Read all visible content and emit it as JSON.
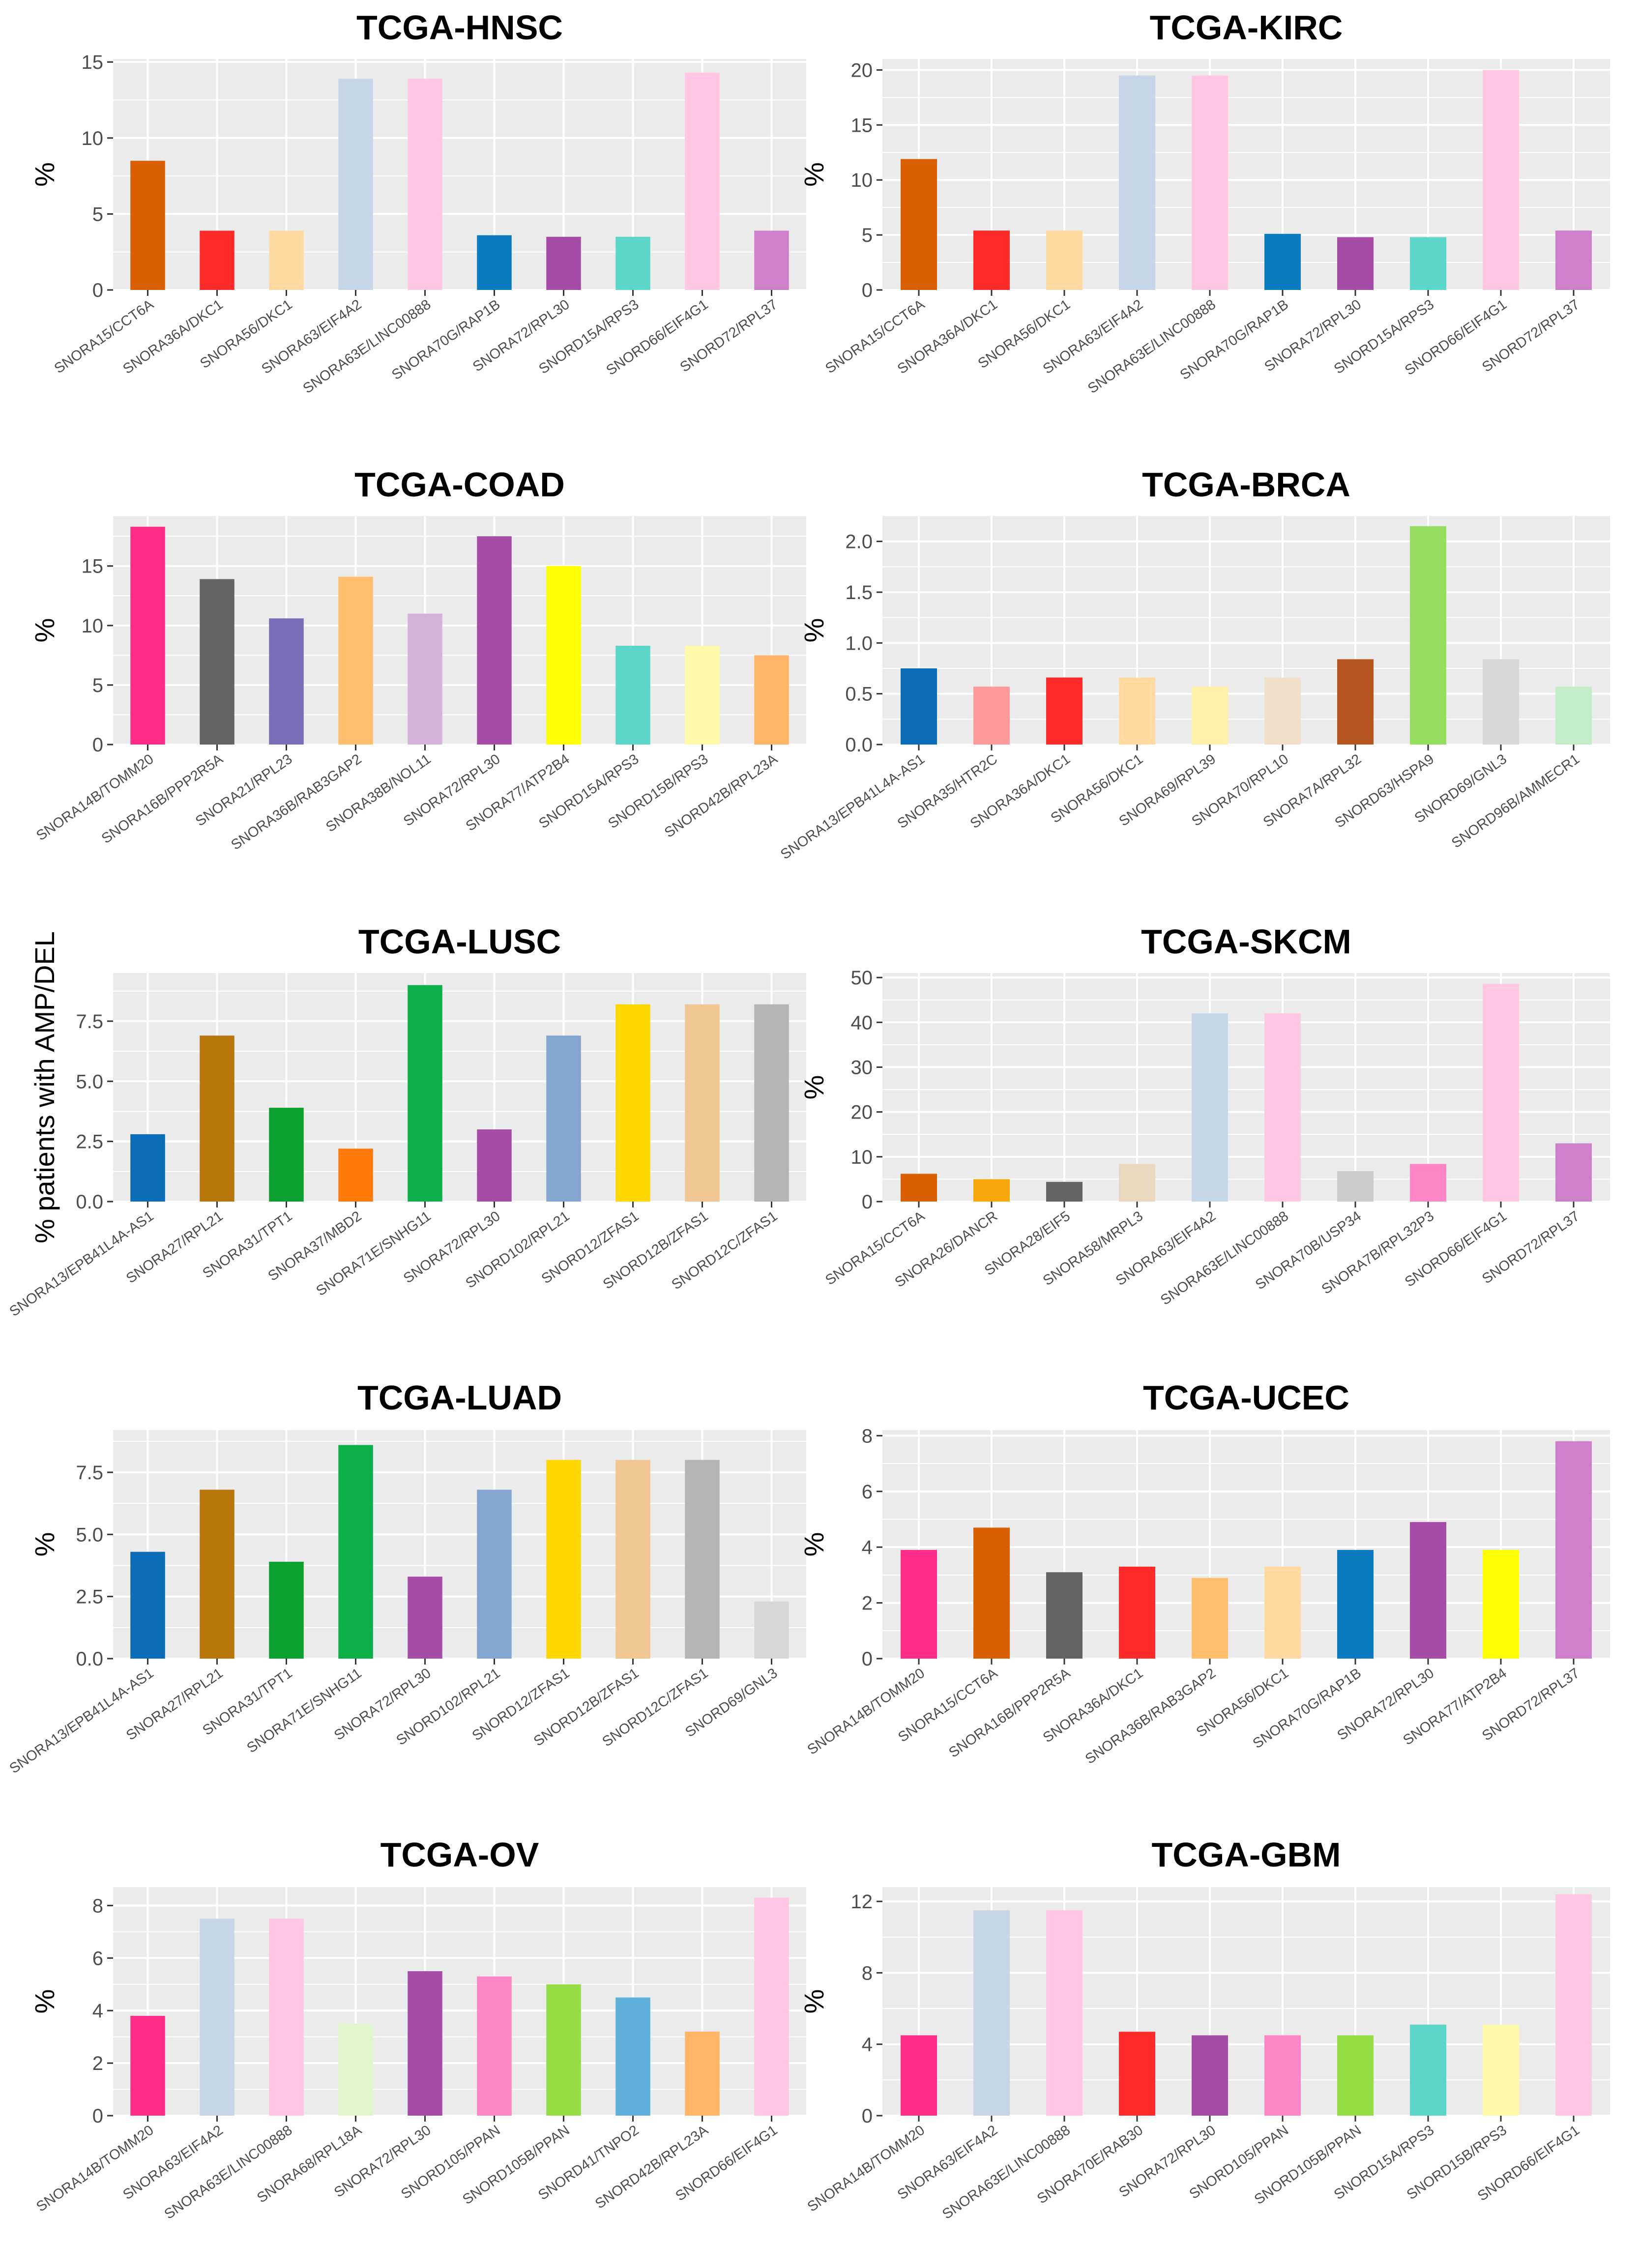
{
  "chart_data": [
    {
      "type": "bar",
      "title": "TCGA-HNSC",
      "ylabel": "%",
      "ylim": [
        0,
        15.2
      ],
      "yticks": [
        0,
        5,
        10,
        15
      ],
      "tick_labels": [
        "0",
        "5",
        "10",
        "15"
      ],
      "categories": [
        "SNORA15/CCT6A",
        "SNORA36A/DKC1",
        "SNORA56/DKC1",
        "SNORA63/EIF4A2",
        "SNORA63E/LINC00888",
        "SNORA70G/RAP1B",
        "SNORA72/RPL30",
        "SNORD15A/RPS3",
        "SNORD66/EIF4G1",
        "SNORD72/RPL37"
      ],
      "values": [
        8.5,
        3.9,
        3.9,
        13.9,
        13.9,
        3.6,
        3.5,
        3.5,
        14.3,
        3.9
      ],
      "colors": [
        "#D95F02",
        "#FF2A2A",
        "#FFD9A0",
        "#C6D6E8",
        "#FFC7E3",
        "#0B7BBF",
        "#A64CA6",
        "#5CD6C8",
        "#FFC7E3",
        "#CD7FC9"
      ]
    },
    {
      "type": "bar",
      "title": "TCGA-KIRC",
      "ylabel": "%",
      "ylim": [
        0,
        21
      ],
      "yticks": [
        0,
        5,
        10,
        15,
        20
      ],
      "tick_labels": [
        "0",
        "5",
        "10",
        "15",
        "20"
      ],
      "categories": [
        "SNORA15/CCT6A",
        "SNORA36A/DKC1",
        "SNORA56/DKC1",
        "SNORA63/EIF4A2",
        "SNORA63E/LINC00888",
        "SNORA70G/RAP1B",
        "SNORA72/RPL30",
        "SNORD15A/RPS3",
        "SNORD66/EIF4G1",
        "SNORD72/RPL37"
      ],
      "values": [
        11.9,
        5.4,
        5.4,
        19.5,
        19.5,
        5.1,
        4.8,
        4.8,
        20,
        5.4
      ],
      "colors": [
        "#D95F02",
        "#FF2A2A",
        "#FFD9A0",
        "#C6D6E8",
        "#FFC7E3",
        "#0B7BBF",
        "#A64CA6",
        "#5CD6C8",
        "#FFC7E3",
        "#CD7FC9"
      ]
    },
    {
      "type": "bar",
      "title": "TCGA-COAD",
      "ylabel": "%",
      "ylim": [
        0,
        19.2
      ],
      "yticks": [
        0,
        5,
        10,
        15
      ],
      "tick_labels": [
        "0",
        "5",
        "10",
        "15"
      ],
      "categories": [
        "SNORA14B/TOMM20",
        "SNORA16B/PPP2R5A",
        "SNORA21/RPL23",
        "SNORA36B/RAB3GAP2",
        "SNORA38B/NOL11",
        "SNORA72/RPL30",
        "SNORA77/ATP2B4",
        "SNORD15A/RPS3",
        "SNORD15B/RPS3",
        "SNORD42B/RPL23A"
      ],
      "values": [
        18.3,
        13.9,
        10.6,
        14.1,
        11,
        17.5,
        15,
        8.3,
        8.3,
        7.5
      ],
      "colors": [
        "#FF2D87",
        "#636466",
        "#7B6DB8",
        "#FFBE6E",
        "#D4B2DA",
        "#A64CA6",
        "#FFFF00",
        "#5CD6C8",
        "#FFFAAA",
        "#FFB466"
      ]
    },
    {
      "type": "bar",
      "title": "TCGA-BRCA",
      "ylabel": "%",
      "ylim": [
        0,
        2.25
      ],
      "yticks": [
        0,
        0.5,
        1,
        1.5,
        2
      ],
      "tick_labels": [
        "0.0",
        "0.5",
        "1.0",
        "1.5",
        "2.0"
      ],
      "categories": [
        "SNORA13/EPB41L4A-AS1",
        "SNORA35/HTR2C",
        "SNORA36A/DKC1",
        "SNORA56/DKC1",
        "SNORA69/RPL39",
        "SNORA70/RPL10",
        "SNORA7A/RPL32",
        "SNORD63/HSPA9",
        "SNORD69/GNL3",
        "SNORD96B/AMMECR1"
      ],
      "values": [
        0.75,
        0.57,
        0.66,
        0.66,
        0.57,
        0.66,
        0.84,
        2.15,
        0.84,
        0.57
      ],
      "colors": [
        "#0B6CB8",
        "#FF9A9A",
        "#FF2A2A",
        "#FFD9A0",
        "#FFF0A8",
        "#F2DFC9",
        "#B8561F",
        "#96DE60",
        "#D5D8D9",
        "#C3EDC8"
      ]
    },
    {
      "type": "bar",
      "title": "TCGA-LUSC",
      "ylabel": "% patients with AMP/DEL",
      "ylim": [
        0,
        9.5
      ],
      "yticks": [
        0,
        2.5,
        5,
        7.5
      ],
      "tick_labels": [
        "0.0",
        "2.5",
        "5.0",
        "7.5"
      ],
      "categories": [
        "SNORA13/EPB41L4A-AS1",
        "SNORA27/RPL21",
        "SNORA31/TPT1",
        "SNORA37/MBD2",
        "SNORA71E/SNHG11",
        "SNORA72/RPL30",
        "SNORD102/RPL21",
        "SNORD12/ZFAS1",
        "SNORD12B/ZFAS1",
        "SNORD12C/ZFAS1"
      ],
      "values": [
        2.8,
        6.9,
        3.9,
        2.2,
        9,
        3,
        6.9,
        8.2,
        8.2,
        8.2
      ],
      "colors": [
        "#0B6CB8",
        "#B8760A",
        "#0BA02F",
        "#FF7A0A",
        "#0BB048",
        "#A64CA6",
        "#85A5D1",
        "#FFD700",
        "#F0C692",
        "#B3B4B6"
      ]
    },
    {
      "type": "bar",
      "title": "TCGA-SKCM",
      "ylabel": "%",
      "ylim": [
        0,
        51
      ],
      "yticks": [
        0,
        10,
        20,
        30,
        40,
        50
      ],
      "tick_labels": [
        "0",
        "10",
        "20",
        "30",
        "40",
        "50"
      ],
      "categories": [
        "SNORA15/CCT6A",
        "SNORA26/DANCR",
        "SNORA28/EIF5",
        "SNORA58/MRPL3",
        "SNORA63/EIF4A2",
        "SNORA63E/LINC00888",
        "SNORA70B/USP34",
        "SNORA7B/RPL32P3",
        "SNORD66/EIF4G1",
        "SNORD72/RPL37"
      ],
      "values": [
        6.2,
        5,
        4.4,
        8.4,
        42,
        42,
        6.8,
        8.4,
        48.6,
        13
      ],
      "colors": [
        "#D95F02",
        "#F6A70A",
        "#636466",
        "#E9D8BE",
        "#C6D6E8",
        "#FFC7E3",
        "#CACBCD",
        "#FF86C6",
        "#FFC7E3",
        "#CD7FC9"
      ]
    },
    {
      "type": "bar",
      "title": "TCGA-LUAD",
      "ylabel": "%",
      "ylim": [
        0,
        9.2
      ],
      "yticks": [
        0,
        2.5,
        5,
        7.5
      ],
      "tick_labels": [
        "0.0",
        "2.5",
        "5.0",
        "7.5"
      ],
      "categories": [
        "SNORA13/EPB41L4A-AS1",
        "SNORA27/RPL21",
        "SNORA31/TPT1",
        "SNORA71E/SNHG11",
        "SNORA72/RPL30",
        "SNORD102/RPL21",
        "SNORD12/ZFAS1",
        "SNORD12B/ZFAS1",
        "SNORD12C/ZFAS1",
        "SNORD69/GNL3"
      ],
      "values": [
        4.3,
        6.8,
        3.9,
        8.6,
        3.3,
        6.8,
        8,
        8,
        8,
        2.3
      ],
      "colors": [
        "#0B6CB8",
        "#B8760A",
        "#0BA02F",
        "#0BB048",
        "#A64CA6",
        "#85A5D1",
        "#FFD700",
        "#F0C692",
        "#B3B4B6",
        "#D5D8D9"
      ]
    },
    {
      "type": "bar",
      "title": "TCGA-UCEC",
      "ylabel": "%",
      "ylim": [
        0,
        8.2
      ],
      "yticks": [
        0,
        2,
        4,
        6,
        8
      ],
      "tick_labels": [
        "0",
        "2",
        "4",
        "6",
        "8"
      ],
      "categories": [
        "SNORA14B/TOMM20",
        "SNORA15/CCT6A",
        "SNORA16B/PPP2R5A",
        "SNORA36A/DKC1",
        "SNORA36B/RAB3GAP2",
        "SNORA56/DKC1",
        "SNORA70G/RAP1B",
        "SNORA72/RPL30",
        "SNORA77/ATP2B4",
        "SNORD72/RPL37"
      ],
      "values": [
        3.9,
        4.7,
        3.1,
        3.3,
        2.9,
        3.3,
        3.9,
        4.9,
        3.9,
        7.8
      ],
      "colors": [
        "#FF2D87",
        "#D95F02",
        "#636466",
        "#FF2A2A",
        "#FFBE6E",
        "#FFD9A0",
        "#0B7BBF",
        "#A64CA6",
        "#FFFF00",
        "#CD7FC9"
      ]
    },
    {
      "type": "bar",
      "title": "TCGA-OV",
      "ylabel": "%",
      "ylim": [
        0,
        8.7
      ],
      "yticks": [
        0,
        2,
        4,
        6,
        8
      ],
      "tick_labels": [
        "0",
        "2",
        "4",
        "6",
        "8"
      ],
      "categories": [
        "SNORA14B/TOMM20",
        "SNORA63/EIF4A2",
        "SNORA63E/LINC00888",
        "SNORA68/RPL18A",
        "SNORA72/RPL30",
        "SNORD105/PPAN",
        "SNORD105B/PPAN",
        "SNORD41/TNPO2",
        "SNORD42B/RPL23A",
        "SNORD66/EIF4G1"
      ],
      "values": [
        3.8,
        7.5,
        7.5,
        3.5,
        5.5,
        5.3,
        5,
        4.5,
        3.2,
        8.3
      ],
      "colors": [
        "#FF2D87",
        "#C6D6E8",
        "#FFC7E3",
        "#E1F5CC",
        "#A64CA6",
        "#FF86C6",
        "#96DE48",
        "#5EB0DA",
        "#FFB466",
        "#FFC7E3"
      ]
    },
    {
      "type": "bar",
      "title": "TCGA-GBM",
      "ylabel": "%",
      "ylim": [
        0,
        12.8
      ],
      "yticks": [
        0,
        4,
        8,
        12
      ],
      "tick_labels": [
        "0",
        "4",
        "8",
        "12"
      ],
      "categories": [
        "SNORA14B/TOMM20",
        "SNORA63/EIF4A2",
        "SNORA63E/LINC00888",
        "SNORA70E/RAB30",
        "SNORA72/RPL30",
        "SNORD105/PPAN",
        "SNORD105B/PPAN",
        "SNORD15A/RPS3",
        "SNORD15B/RPS3",
        "SNORD66/EIF4G1"
      ],
      "values": [
        4.5,
        11.5,
        11.5,
        4.7,
        4.5,
        4.5,
        4.5,
        5.1,
        5.1,
        12.4
      ],
      "colors": [
        "#FF2D87",
        "#C6D6E8",
        "#FFC7E3",
        "#FF2A2A",
        "#A64CA6",
        "#FF86C6",
        "#96DE48",
        "#5CD6C8",
        "#FFFAAA",
        "#FFC7E3"
      ]
    }
  ]
}
